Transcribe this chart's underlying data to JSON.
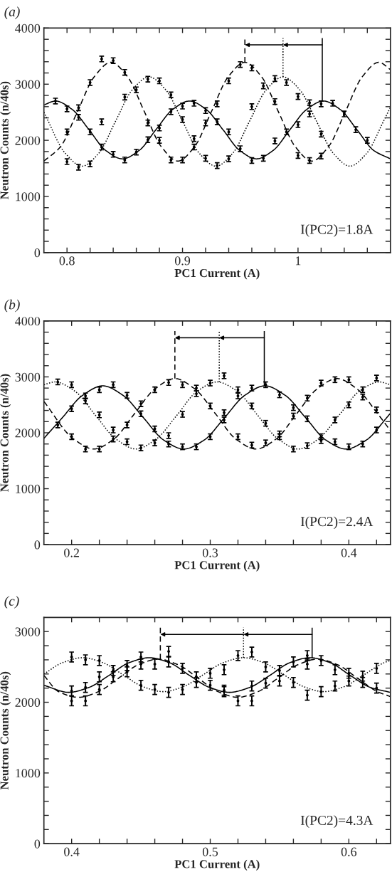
{
  "chart_data": [
    {
      "type": "line",
      "title": "(a)",
      "xlabel": "PC1 Current (A)",
      "ylabel": "Neutron Counts (n/40s)",
      "annotations": [
        "I(PC2)=1.8A"
      ],
      "xlim": [
        0.78,
        1.08
      ],
      "ylim": [
        0,
        4000
      ],
      "xticks": [
        0.8,
        {
          "value": 0.82,
          "label": null
        },
        {
          "value": 0.84,
          "label": null
        },
        {
          "value": 0.86,
          "label": null
        },
        {
          "value": 0.88,
          "label": null
        },
        0.9,
        {
          "value": 0.92,
          "label": null
        },
        {
          "value": 0.94,
          "label": null
        },
        {
          "value": 0.96,
          "label": null
        },
        {
          "value": 0.98,
          "label": null
        },
        1,
        {
          "value": 1.02,
          "label": null
        },
        {
          "value": 1.04,
          "label": null
        },
        {
          "value": 1.06,
          "label": null
        }
      ],
      "yticks": [
        0,
        {
          "value": 200,
          "label": null
        },
        {
          "value": 400,
          "label": null
        },
        {
          "value": 600,
          "label": null
        },
        {
          "value": 800,
          "label": null
        },
        1000,
        {
          "value": 1200,
          "label": null
        },
        {
          "value": 1400,
          "label": null
        },
        {
          "value": 1600,
          "label": null
        },
        {
          "value": 1800,
          "label": null
        },
        2000,
        {
          "value": 2200,
          "label": null
        },
        {
          "value": 2400,
          "label": null
        },
        {
          "value": 2600,
          "label": null
        },
        {
          "value": 2800,
          "label": null
        },
        3000,
        {
          "value": 3200,
          "label": null
        },
        {
          "value": 3400,
          "label": null
        },
        {
          "value": 3600,
          "label": null
        },
        {
          "value": 3800,
          "label": null
        },
        4000
      ],
      "ref_lines": [
        {
          "axis": "x",
          "value": 0.954,
          "line_style": "dashed",
          "color": "#000000"
        },
        {
          "axis": "x",
          "value": 0.987,
          "line_style": "dotted",
          "color": "#000000"
        },
        {
          "axis": "x",
          "value": 1.021,
          "line_style": "solid",
          "color": "#000000"
        }
      ],
      "series": [
        {
          "line_style": "solid",
          "color": "#000000",
          "x": [
            0.78,
            0.79,
            0.8045,
            0.819,
            0.8335,
            0.848,
            0.8625,
            0.877,
            0.8915,
            0.906,
            0.9205,
            0.935,
            0.9495,
            0.964,
            0.9785,
            0.993,
            1.0075,
            1.022,
            1.0365,
            1.051,
            1.0655,
            1.08
          ],
          "values": [
            2630,
            2700,
            2550,
            2190,
            1820,
            1670,
            1820,
            2190,
            2550,
            2700,
            2550,
            2190,
            1820,
            1670,
            1820,
            2190,
            2550,
            2700,
            2550,
            2190,
            1820,
            1670
          ]
        },
        {
          "line_style": "dashed",
          "color": "#000000",
          "x": [
            0.78,
            0.7945,
            0.809,
            0.8235,
            0.838,
            0.8525,
            0.867,
            0.8815,
            0.896,
            0.9105,
            0.925,
            0.9395,
            0.954,
            0.9685,
            0.983,
            0.9975,
            1.012,
            1.0265,
            1.041,
            1.0555,
            1.07,
            1.08
          ],
          "values": [
            1630,
            1890,
            2510,
            3130,
            3390,
            3130,
            2510,
            1890,
            1630,
            1890,
            2510,
            3130,
            3390,
            3130,
            2510,
            1890,
            1630,
            1890,
            2510,
            3130,
            3390,
            3260
          ]
        },
        {
          "line_style": "dotted",
          "color": "#000000",
          "x": [
            0.78,
            0.7985,
            0.813,
            0.8275,
            0.842,
            0.8565,
            0.871,
            0.8855,
            0.9,
            0.9145,
            0.929,
            0.9435,
            0.958,
            0.9725,
            0.987,
            1.0015,
            1.016,
            1.0305,
            1.045,
            1.0595,
            1.074,
            1.08
          ],
          "values": [
            2500,
            1770,
            1540,
            1770,
            2340,
            2900,
            3130,
            2900,
            2340,
            1770,
            1540,
            1770,
            2340,
            2900,
            3130,
            2900,
            2340,
            1770,
            1540,
            1770,
            2340,
            2590
          ]
        },
        {
          "type": "scatter",
          "marker": "circle",
          "color": "#000000",
          "x": [
            0.79,
            0.8,
            0.8,
            0.8,
            0.81,
            0.81,
            0.81,
            0.82,
            0.82,
            0.82,
            0.83,
            0.83,
            0.83,
            0.84,
            0.84,
            0.85,
            0.85,
            0.85,
            0.86,
            0.86,
            0.87,
            0.87,
            0.87,
            0.88,
            0.88,
            0.88,
            0.89,
            0.89,
            0.89,
            0.9,
            0.9,
            0.9,
            0.91,
            0.91,
            0.91,
            0.92,
            0.92,
            0.92,
            0.93,
            0.93,
            0.93,
            0.94,
            0.94,
            0.94,
            0.95,
            0.95,
            0.96,
            0.96,
            0.96,
            0.97,
            0.97,
            0.98,
            0.98,
            0.98,
            0.99,
            0.99,
            1.0,
            1.0,
            1.0,
            1.01,
            1.01,
            1.01,
            1.02,
            1.02,
            1.02,
            1.03,
            1.04,
            1.05,
            1.06
          ],
          "values": [
            2700,
            2560,
            2150,
            1620,
            2580,
            2410,
            1520,
            3030,
            2150,
            1580,
            3450,
            2330,
            1880,
            3420,
            1750,
            3210,
            2770,
            1650,
            2900,
            1790,
            3090,
            2310,
            2010,
            3060,
            2220,
            2000,
            2810,
            2510,
            1650,
            2610,
            2370,
            1650,
            2660,
            2030,
            1880,
            2530,
            2310,
            1680,
            2650,
            2330,
            1550,
            3060,
            2150,
            1670,
            3350,
            1850,
            3290,
            2600,
            1640,
            2970,
            1680,
            3100,
            2690,
            1990,
            3030,
            2150,
            2780,
            2280,
            1730,
            2670,
            2470,
            1640,
            2650,
            2110,
            1720,
            2660,
            2470,
            2190,
            2000
          ],
          "errors": [
            50,
            50,
            50,
            50,
            50,
            50,
            50,
            50,
            50,
            50,
            50,
            50,
            50,
            50,
            50,
            50,
            50,
            50,
            50,
            50,
            50,
            50,
            50,
            50,
            50,
            50,
            50,
            50,
            50,
            50,
            50,
            50,
            50,
            50,
            50,
            50,
            50,
            50,
            50,
            50,
            50,
            50,
            50,
            50,
            50,
            50,
            50,
            50,
            50,
            50,
            50,
            50,
            50,
            50,
            50,
            50,
            50,
            50,
            50,
            50,
            50,
            50,
            50,
            50,
            50,
            50,
            50,
            50,
            50
          ]
        }
      ]
    },
    {
      "type": "line",
      "title": "(b)",
      "xlabel": "PC1 Current (A)",
      "ylabel": "Neutron Counts (n/40s)",
      "annotations": [
        "I(PC2)=2.4A"
      ],
      "xlim": [
        0.18,
        0.43
      ],
      "ylim": [
        0,
        4000
      ],
      "xticks": [
        0.2,
        {
          "value": 0.22,
          "label": null
        },
        {
          "value": 0.24,
          "label": null
        },
        {
          "value": 0.26,
          "label": null
        },
        {
          "value": 0.28,
          "label": null
        },
        0.3,
        {
          "value": 0.32,
          "label": null
        },
        {
          "value": 0.34,
          "label": null
        },
        {
          "value": 0.36,
          "label": null
        },
        {
          "value": 0.38,
          "label": null
        },
        0.4,
        {
          "value": 0.42,
          "label": null
        }
      ],
      "yticks": [
        0,
        {
          "value": 200,
          "label": null
        },
        {
          "value": 400,
          "label": null
        },
        {
          "value": 600,
          "label": null
        },
        {
          "value": 800,
          "label": null
        },
        1000,
        {
          "value": 1200,
          "label": null
        },
        {
          "value": 1400,
          "label": null
        },
        {
          "value": 1600,
          "label": null
        },
        {
          "value": 1800,
          "label": null
        },
        2000,
        {
          "value": 2200,
          "label": null
        },
        {
          "value": 2400,
          "label": null
        },
        {
          "value": 2600,
          "label": null
        },
        {
          "value": 2800,
          "label": null
        },
        3000,
        {
          "value": 3200,
          "label": null
        },
        {
          "value": 3400,
          "label": null
        },
        {
          "value": 3600,
          "label": null
        },
        {
          "value": 3800,
          "label": null
        },
        4000
      ],
      "ref_lines": [
        {
          "axis": "x",
          "value": 0.2745,
          "line_style": "dashed",
          "color": "#000000"
        },
        {
          "axis": "x",
          "value": 0.3065,
          "line_style": "dotted",
          "color": "#000000"
        },
        {
          "axis": "x",
          "value": 0.339,
          "line_style": "solid",
          "color": "#000000"
        }
      ],
      "series": [
        {
          "line_style": "solid",
          "color": "#000000",
          "x": [
            0.18,
            0.1933,
            0.2079,
            0.2225,
            0.2371,
            0.2518,
            0.2664,
            0.281,
            0.2956,
            0.3103,
            0.3249,
            0.3395,
            0.3541,
            0.3688,
            0.3834,
            0.398,
            0.4126,
            0.4273,
            0.43
          ],
          "values": [
            1900,
            2270,
            2670,
            2840,
            2670,
            2270,
            1870,
            1710,
            1870,
            2270,
            2670,
            2840,
            2670,
            2270,
            1870,
            1710,
            1870,
            2270,
            2350
          ]
        },
        {
          "line_style": "dashed",
          "color": "#000000",
          "x": [
            0.18,
            0.2014,
            0.216,
            0.2306,
            0.2453,
            0.2599,
            0.2745,
            0.2891,
            0.3038,
            0.3184,
            0.333,
            0.3476,
            0.3623,
            0.3769,
            0.3915,
            0.4061,
            0.4208,
            0.43
          ],
          "values": [
            2560,
            1890,
            1710,
            1890,
            2340,
            2780,
            2970,
            2780,
            2340,
            1890,
            1710,
            1890,
            2340,
            2780,
            2970,
            2780,
            2340,
            2040
          ]
        },
        {
          "line_style": "dotted",
          "color": "#000000",
          "x": [
            0.18,
            0.188,
            0.2026,
            0.2173,
            0.2319,
            0.2465,
            0.2611,
            0.2758,
            0.2904,
            0.305,
            0.3196,
            0.3343,
            0.3489,
            0.3635,
            0.3781,
            0.3928,
            0.4074,
            0.422,
            0.43
          ],
          "values": [
            2860,
            2910,
            2740,
            2310,
            1890,
            1710,
            1890,
            2310,
            2740,
            2910,
            2740,
            2310,
            1890,
            1710,
            1890,
            2310,
            2740,
            2910,
            2860
          ]
        },
        {
          "type": "scatter",
          "marker": "circle",
          "color": "#000000",
          "x": [
            0.19,
            0.19,
            0.2,
            0.2,
            0.2,
            0.21,
            0.21,
            0.21,
            0.22,
            0.22,
            0.22,
            0.23,
            0.23,
            0.23,
            0.24,
            0.24,
            0.24,
            0.25,
            0.25,
            0.25,
            0.26,
            0.26,
            0.26,
            0.27,
            0.27,
            0.27,
            0.28,
            0.28,
            0.28,
            0.29,
            0.29,
            0.29,
            0.3,
            0.3,
            0.3,
            0.31,
            0.31,
            0.31,
            0.32,
            0.32,
            0.32,
            0.33,
            0.33,
            0.33,
            0.34,
            0.34,
            0.34,
            0.35,
            0.35,
            0.35,
            0.36,
            0.36,
            0.36,
            0.37,
            0.37,
            0.37,
            0.38,
            0.38,
            0.38,
            0.39,
            0.39,
            0.39,
            0.4,
            0.4,
            0.4,
            0.41,
            0.41,
            0.41,
            0.42,
            0.42,
            0.42
          ],
          "values": [
            2910,
            2140,
            2860,
            2430,
            1930,
            2660,
            2570,
            1710,
            2770,
            2320,
            1710,
            2860,
            2050,
            1890,
            2670,
            2140,
            1840,
            2520,
            2340,
            1730,
            2770,
            2070,
            1820,
            2900,
            1950,
            1800,
            2860,
            2330,
            1750,
            2800,
            2700,
            1750,
            2890,
            2480,
            1930,
            3020,
            2360,
            2230,
            2770,
            2660,
            1930,
            2800,
            2480,
            1780,
            2860,
            2170,
            1820,
            2680,
            1980,
            1930,
            2450,
            2300,
            1710,
            2620,
            2250,
            1770,
            2890,
            1930,
            1860,
            2950,
            2230,
            1840,
            2950,
            2500,
            1750,
            2770,
            2640,
            1800,
            2980,
            2410,
            2050
          ],
          "errors": [
            50,
            50,
            50,
            50,
            50,
            50,
            50,
            50,
            50,
            50,
            50,
            50,
            50,
            50,
            50,
            50,
            50,
            50,
            50,
            50,
            50,
            50,
            50,
            50,
            50,
            50,
            50,
            50,
            50,
            50,
            50,
            50,
            50,
            50,
            50,
            50,
            50,
            50,
            50,
            50,
            50,
            50,
            50,
            50,
            50,
            50,
            50,
            50,
            50,
            50,
            50,
            50,
            50,
            50,
            50,
            50,
            50,
            50,
            50,
            50,
            50,
            50,
            50,
            50,
            50,
            50,
            50,
            50,
            50,
            50,
            50
          ]
        }
      ]
    },
    {
      "type": "line",
      "title": "(c)",
      "xlabel": "PC1 Current (A)",
      "ylabel": "Neutron Counts (n/40s)",
      "annotations": [
        "I(PC2)=4.3A"
      ],
      "xlim": [
        0.38,
        0.63
      ],
      "ylim": [
        0,
        3200
      ],
      "xticks": [
        0.4,
        {
          "value": 0.42,
          "label": null
        },
        {
          "value": 0.44,
          "label": null
        },
        {
          "value": 0.46,
          "label": null
        },
        {
          "value": 0.48,
          "label": null
        },
        0.5,
        {
          "value": 0.52,
          "label": null
        },
        {
          "value": 0.54,
          "label": null
        },
        {
          "value": 0.56,
          "label": null
        },
        {
          "value": 0.58,
          "label": null
        },
        0.6,
        {
          "value": 0.62,
          "label": null
        }
      ],
      "yticks": [
        0,
        {
          "value": 200,
          "label": null
        },
        {
          "value": 400,
          "label": null
        },
        {
          "value": 600,
          "label": null
        },
        {
          "value": 800,
          "label": null
        },
        1000,
        {
          "value": 1200,
          "label": null
        },
        {
          "value": 1400,
          "label": null
        },
        {
          "value": 1600,
          "label": null
        },
        {
          "value": 1800,
          "label": null
        },
        2000,
        {
          "value": 2200,
          "label": null
        },
        {
          "value": 2400,
          "label": null
        },
        {
          "value": 2600,
          "label": null
        },
        {
          "value": 2800,
          "label": null
        },
        3000
      ],
      "ref_lines": [
        {
          "axis": "x",
          "value": 0.464,
          "line_style": "dashed",
          "color": "#000000"
        },
        {
          "axis": "x",
          "value": 0.524,
          "line_style": "dotted",
          "color": "#000000"
        },
        {
          "axis": "x",
          "value": 0.5735,
          "line_style": "solid",
          "color": "#000000"
        }
      ],
      "series": [
        {
          "line_style": "solid",
          "color": "#000000",
          "x": [
            0.38,
            0.398,
            0.4125,
            0.427,
            0.4415,
            0.456,
            0.4705,
            0.485,
            0.4995,
            0.514,
            0.5285,
            0.543,
            0.5575,
            0.572,
            0.5865,
            0.601,
            0.6155,
            0.63
          ],
          "values": [
            2240,
            2140,
            2210,
            2380,
            2560,
            2630,
            2560,
            2380,
            2210,
            2140,
            2210,
            2380,
            2560,
            2630,
            2560,
            2380,
            2210,
            2140
          ]
        },
        {
          "line_style": "dashed",
          "color": "#000000",
          "x": [
            0.38,
            0.3906,
            0.405,
            0.4194,
            0.4338,
            0.4481,
            0.4625,
            0.4769,
            0.4913,
            0.5056,
            0.52,
            0.5344,
            0.5488,
            0.5631,
            0.5775,
            0.5919,
            0.6063,
            0.6206,
            0.63
          ],
          "values": [
            2380,
            2150,
            2070,
            2150,
            2340,
            2530,
            2610,
            2530,
            2340,
            2150,
            2070,
            2150,
            2340,
            2530,
            2610,
            2530,
            2340,
            2150,
            2080
          ]
        },
        {
          "line_style": "dotted",
          "color": "#000000",
          "x": [
            0.38,
            0.3935,
            0.408,
            0.4225,
            0.437,
            0.4515,
            0.466,
            0.4805,
            0.495,
            0.5095,
            0.524,
            0.5385,
            0.553,
            0.5675,
            0.582,
            0.5965,
            0.611,
            0.6255,
            0.63
          ],
          "values": [
            2400,
            2560,
            2630,
            2560,
            2390,
            2220,
            2150,
            2220,
            2390,
            2560,
            2630,
            2560,
            2390,
            2220,
            2150,
            2220,
            2390,
            2560,
            2590
          ]
        },
        {
          "type": "scatter",
          "marker": "circle",
          "color": "#000000",
          "x": [
            0.4,
            0.4,
            0.4,
            0.41,
            0.41,
            0.41,
            0.42,
            0.42,
            0.42,
            0.43,
            0.43,
            0.44,
            0.44,
            0.45,
            0.45,
            0.45,
            0.46,
            0.46,
            0.47,
            0.47,
            0.47,
            0.48,
            0.48,
            0.49,
            0.49,
            0.5,
            0.5,
            0.51,
            0.51,
            0.51,
            0.52,
            0.52,
            0.53,
            0.53,
            0.53,
            0.54,
            0.54,
            0.55,
            0.55,
            0.56,
            0.56,
            0.57,
            0.57,
            0.57,
            0.58,
            0.58,
            0.59,
            0.59,
            0.6,
            0.6,
            0.61,
            0.61,
            0.62,
            0.62
          ],
          "values": [
            2640,
            2160,
            2020,
            2600,
            2210,
            2020,
            2590,
            2360,
            2180,
            2450,
            2360,
            2520,
            2430,
            2640,
            2540,
            2240,
            2540,
            2180,
            2720,
            2570,
            2140,
            2480,
            2180,
            2360,
            2280,
            2410,
            2240,
            2460,
            2170,
            2150,
            2660,
            2020,
            2710,
            2230,
            2020,
            2500,
            2270,
            2450,
            2300,
            2570,
            2280,
            2660,
            2540,
            2100,
            2590,
            2150,
            2460,
            2230,
            2410,
            2300,
            2370,
            2280,
            2480,
            2200
          ],
          "errors": [
            70,
            70,
            70,
            70,
            70,
            70,
            70,
            70,
            70,
            70,
            70,
            70,
            70,
            70,
            70,
            70,
            70,
            70,
            70,
            70,
            70,
            70,
            70,
            70,
            70,
            70,
            70,
            70,
            70,
            70,
            70,
            70,
            70,
            70,
            70,
            70,
            70,
            70,
            70,
            70,
            70,
            70,
            70,
            70,
            70,
            70,
            70,
            70,
            70,
            70,
            70,
            70,
            70,
            70
          ]
        }
      ]
    }
  ]
}
